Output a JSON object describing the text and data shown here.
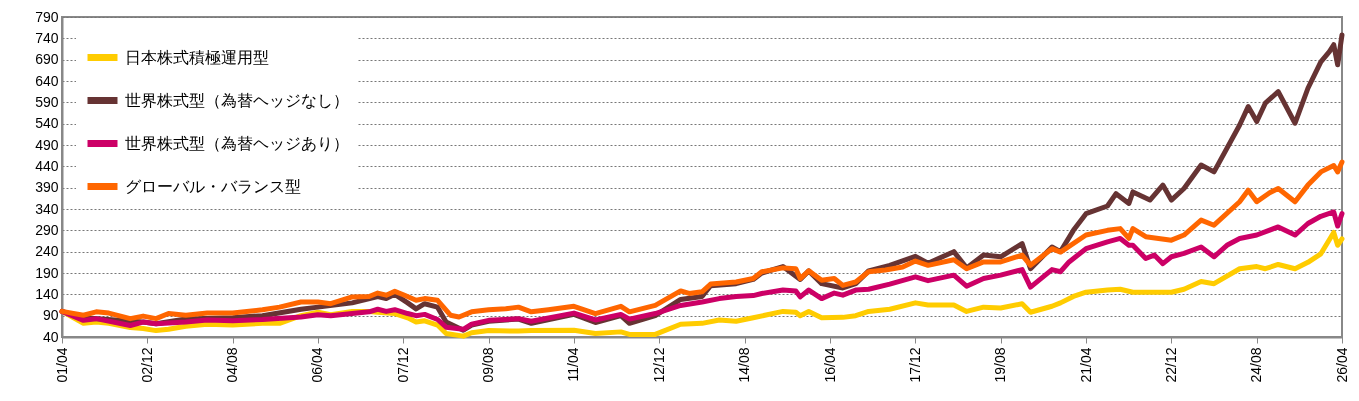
{
  "chart_data": {
    "type": "line",
    "xlim": [
      "2001-04",
      "2026-04"
    ],
    "ylim": [
      40,
      790
    ],
    "yticks": [
      40,
      90,
      140,
      190,
      240,
      290,
      340,
      390,
      440,
      490,
      540,
      590,
      640,
      690,
      740,
      790
    ],
    "xticks": [
      {
        "value": "2001-04",
        "label": "01/04"
      },
      {
        "value": "2002-12",
        "label": "02/12"
      },
      {
        "value": "2004-08",
        "label": "04/08"
      },
      {
        "value": "2006-04",
        "label": "06/04"
      },
      {
        "value": "2007-12",
        "label": "07/12"
      },
      {
        "value": "2009-08",
        "label": "09/08"
      },
      {
        "value": "2011-04",
        "label": "11/04"
      },
      {
        "value": "2012-12",
        "label": "12/12"
      },
      {
        "value": "2014-08",
        "label": "14/08"
      },
      {
        "value": "2016-04",
        "label": "16/04"
      },
      {
        "value": "2017-12",
        "label": "17/12"
      },
      {
        "value": "2019-08",
        "label": "19/08"
      },
      {
        "value": "2021-04",
        "label": "21/04"
      },
      {
        "value": "2022-12",
        "label": "22/12"
      },
      {
        "value": "2024-08",
        "label": "24/08"
      },
      {
        "value": "2026-04",
        "label": "26/04"
      }
    ],
    "grid": "y",
    "legend": "top left",
    "marker": "none",
    "line_style": "solid",
    "series": [
      {
        "name": "日本株式積極運用型",
        "color": "#ffcc00",
        "x": [
          "2001-04",
          "2001-09",
          "2001-12",
          "2002-03",
          "2002-08",
          "2002-11",
          "2003-02",
          "2003-05",
          "2003-09",
          "2004-02",
          "2004-08",
          "2005-03",
          "2005-07",
          "2005-12",
          "2006-04",
          "2006-07",
          "2006-12",
          "2007-04",
          "2007-06",
          "2007-10",
          "2008-01",
          "2008-03",
          "2008-05",
          "2008-08",
          "2008-10",
          "2009-02",
          "2009-04",
          "2009-08",
          "2010-03",
          "2010-06",
          "2011-04",
          "2011-09",
          "2012-03",
          "2012-05",
          "2012-11",
          "2013-05",
          "2013-10",
          "2014-02",
          "2014-06",
          "2014-10",
          "2015-05",
          "2015-08",
          "2015-09",
          "2015-11",
          "2016-02",
          "2016-07",
          "2016-10",
          "2017-01",
          "2017-06",
          "2017-12",
          "2018-03",
          "2018-09",
          "2018-12",
          "2019-04",
          "2019-08",
          "2020-01",
          "2020-03",
          "2020-08",
          "2020-10",
          "2021-01",
          "2021-04",
          "2021-09",
          "2021-12",
          "2022-03",
          "2022-08",
          "2022-12",
          "2023-03",
          "2023-07",
          "2023-10",
          "2024-04",
          "2024-08",
          "2024-10",
          "2025-01",
          "2025-05",
          "2025-08",
          "2025-11",
          "2026-02",
          "2026-03",
          "2026-04"
        ],
        "values": [
          100,
          72,
          75,
          72,
          62,
          60,
          55,
          58,
          65,
          70,
          68,
          72,
          72,
          90,
          98,
          92,
          100,
          100,
          98,
          95,
          85,
          75,
          78,
          68,
          48,
          42,
          50,
          55,
          54,
          55,
          56,
          48,
          52,
          46,
          46,
          70,
          72,
          80,
          77,
          85,
          100,
          98,
          90,
          100,
          85,
          86,
          90,
          100,
          105,
          120,
          115,
          115,
          100,
          110,
          108,
          118,
          98,
          112,
          120,
          135,
          145,
          150,
          152,
          145,
          145,
          145,
          152,
          170,
          165,
          200,
          205,
          200,
          210,
          200,
          215,
          235,
          285,
          255,
          270
        ]
      },
      {
        "name": "世界株式型（為替ヘッジなし）",
        "color": "#663333",
        "x": [
          "2001-04",
          "2001-09",
          "2002-11",
          "2003-02",
          "2003-09",
          "2004-08",
          "2005-03",
          "2005-12",
          "2006-04",
          "2006-12",
          "2007-06",
          "2007-08",
          "2007-10",
          "2008-01",
          "2008-03",
          "2008-05",
          "2008-08",
          "2008-10",
          "2009-02",
          "2009-04",
          "2009-08",
          "2010-03",
          "2010-06",
          "2011-04",
          "2011-09",
          "2012-03",
          "2012-05",
          "2012-11",
          "2013-05",
          "2013-10",
          "2013-12",
          "2014-06",
          "2014-10",
          "2014-12",
          "2015-05",
          "2015-09",
          "2015-11",
          "2016-02",
          "2016-07",
          "2016-10",
          "2017-01",
          "2017-06",
          "2017-12",
          "2018-03",
          "2018-09",
          "2018-12",
          "2019-04",
          "2019-08",
          "2020-01",
          "2020-03",
          "2020-08",
          "2020-10",
          "2021-01",
          "2021-04",
          "2021-09",
          "2021-11",
          "2022-02",
          "2022-03",
          "2022-07",
          "2022-10",
          "2022-12",
          "2023-03",
          "2023-07",
          "2023-10",
          "2024-04",
          "2024-06",
          "2024-08",
          "2024-10",
          "2025-01",
          "2025-05",
          "2025-08",
          "2025-11",
          "2026-01",
          "2026-02",
          "2026-03",
          "2026-04"
        ],
        "values": [
          100,
          85,
          75,
          71,
          82,
          85,
          90,
          105,
          110,
          120,
          135,
          130,
          140,
          120,
          106,
          118,
          110,
          75,
          56,
          68,
          77,
          82,
          72,
          93,
          74,
          90,
          72,
          90,
          128,
          135,
          160,
          165,
          175,
          190,
          205,
          175,
          195,
          165,
          155,
          165,
          195,
          208,
          229,
          213,
          240,
          202,
          232,
          228,
          259,
          200,
          251,
          240,
          290,
          329,
          347,
          376,
          353,
          380,
          361,
          396,
          361,
          388,
          443,
          427,
          537,
          580,
          545,
          588,
          615,
          541,
          623,
          685,
          709,
          725,
          678,
          748
        ]
      },
      {
        "name": "世界株式型（為替ヘッジあり）",
        "color": "#cc0066",
        "x": [
          "2001-04",
          "2001-09",
          "2001-12",
          "2002-08",
          "2002-11",
          "2003-02",
          "2003-09",
          "2004-02",
          "2004-08",
          "2005-03",
          "2005-12",
          "2006-04",
          "2006-07",
          "2006-12",
          "2007-04",
          "2007-06",
          "2007-08",
          "2007-10",
          "2008-01",
          "2008-03",
          "2008-05",
          "2008-08",
          "2008-10",
          "2009-02",
          "2009-04",
          "2009-08",
          "2010-03",
          "2010-06",
          "2011-04",
          "2011-09",
          "2012-03",
          "2012-05",
          "2012-11",
          "2013-05",
          "2013-10",
          "2014-02",
          "2014-06",
          "2014-10",
          "2014-12",
          "2015-05",
          "2015-08",
          "2015-09",
          "2015-11",
          "2016-02",
          "2016-05",
          "2016-07",
          "2016-10",
          "2017-01",
          "2017-06",
          "2017-12",
          "2018-03",
          "2018-09",
          "2018-12",
          "2019-04",
          "2019-08",
          "2020-01",
          "2020-03",
          "2020-08",
          "2020-10",
          "2020-12",
          "2021-04",
          "2021-09",
          "2021-12",
          "2022-02",
          "2022-03",
          "2022-06",
          "2022-08",
          "2022-10",
          "2022-12",
          "2023-03",
          "2023-07",
          "2023-10",
          "2024-01",
          "2024-04",
          "2024-08",
          "2025-01",
          "2025-05",
          "2025-08",
          "2025-11",
          "2026-02",
          "2026-03",
          "2026-04"
        ],
        "values": [
          100,
          79,
          83,
          67,
          75,
          71,
          75,
          80,
          78,
          81,
          87,
          92,
          90,
          95,
          99,
          105,
          100,
          104,
          95,
          90,
          93,
          81,
          63,
          58,
          70,
          79,
          83,
          77,
          96,
          80,
          93,
          82,
          95,
          114,
          122,
          130,
          135,
          137,
          142,
          150,
          148,
          134,
          150,
          130,
          143,
          138,
          150,
          152,
          164,
          181,
          172,
          185,
          159,
          177,
          185,
          198,
          157,
          198,
          193,
          216,
          247,
          263,
          271,
          255,
          255,
          224,
          232,
          212,
          228,
          236,
          251,
          228,
          255,
          271,
          279,
          298,
          279,
          306,
          323,
          333,
          300,
          329
        ]
      },
      {
        "name": "グローバル・バランス型",
        "color": "#ff6600",
        "x": [
          "2001-04",
          "2001-09",
          "2001-12",
          "2002-03",
          "2002-08",
          "2002-11",
          "2003-02",
          "2003-05",
          "2003-09",
          "2004-02",
          "2004-08",
          "2005-03",
          "2005-07",
          "2005-12",
          "2006-04",
          "2006-07",
          "2006-12",
          "2007-04",
          "2007-06",
          "2007-08",
          "2007-10",
          "2007-12",
          "2008-03",
          "2008-05",
          "2008-08",
          "2008-11",
          "2009-01",
          "2009-04",
          "2009-08",
          "2009-12",
          "2010-03",
          "2010-06",
          "2010-10",
          "2011-04",
          "2011-09",
          "2012-03",
          "2012-05",
          "2012-11",
          "2013-05",
          "2013-07",
          "2013-10",
          "2013-12",
          "2014-06",
          "2014-10",
          "2014-12",
          "2015-05",
          "2015-08",
          "2015-09",
          "2015-11",
          "2016-02",
          "2016-05",
          "2016-07",
          "2016-10",
          "2017-01",
          "2017-05",
          "2017-09",
          "2017-12",
          "2018-03",
          "2018-09",
          "2018-12",
          "2019-04",
          "2019-08",
          "2020-01",
          "2020-03",
          "2020-08",
          "2020-10",
          "2021-04",
          "2021-09",
          "2021-12",
          "2022-02",
          "2022-03",
          "2022-06",
          "2022-12",
          "2023-03",
          "2023-07",
          "2023-10",
          "2024-04",
          "2024-06",
          "2024-08",
          "2024-11",
          "2025-01",
          "2025-05",
          "2025-08",
          "2025-11",
          "2026-02",
          "2026-03",
          "2026-04"
        ],
        "values": [
          100,
          91,
          99,
          96,
          83,
          89,
          83,
          95,
          91,
          96,
          96,
          104,
          110,
          122,
          122,
          118,
          134,
          135,
          143,
          138,
          147,
          139,
          126,
          130,
          126,
          91,
          87,
          99,
          104,
          106,
          110,
          99,
          104,
          112,
          95,
          112,
          99,
          114,
          148,
          142,
          146,
          164,
          169,
          177,
          193,
          202,
          200,
          177,
          195,
          173,
          177,
          161,
          169,
          193,
          197,
          204,
          218,
          208,
          221,
          200,
          216,
          216,
          232,
          208,
          247,
          239,
          279,
          290,
          294,
          271,
          294,
          275,
          267,
          279,
          314,
          302,
          357,
          384,
          357,
          378,
          388,
          357,
          396,
          427,
          442,
          427,
          450
        ]
      }
    ]
  }
}
